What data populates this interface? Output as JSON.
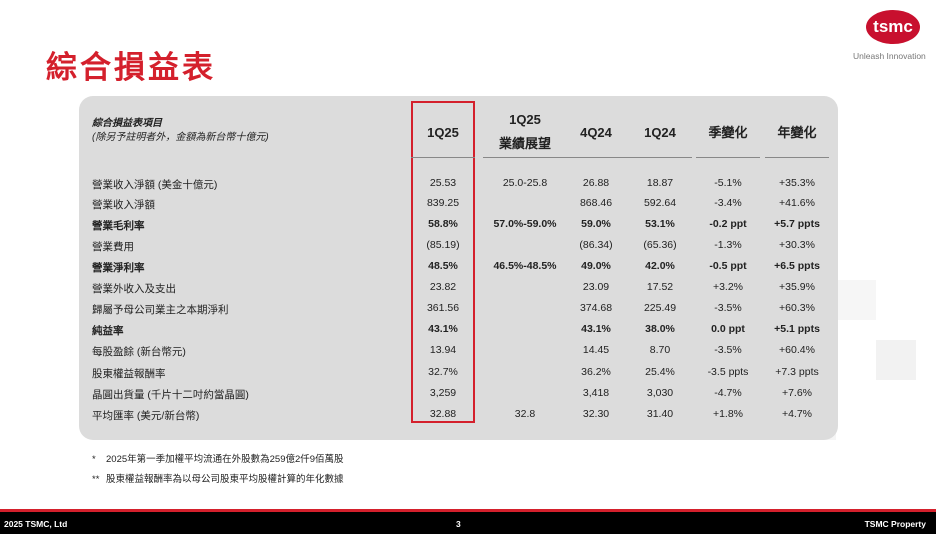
{
  "title": "綜合損益表",
  "logo": {
    "text": "tsmc",
    "tagline": "Unleash Innovation"
  },
  "header": {
    "item_title": "綜合損益表項目",
    "item_sub": "(除另予註明者外，金額為新台幣十億元)",
    "cols": [
      "1Q25",
      "1Q25\n業績展望",
      "4Q24",
      "1Q24",
      "季變化",
      "年變化"
    ]
  },
  "rows": [
    {
      "label": "營業收入淨額 (美金十億元)",
      "bold": false,
      "vals": [
        "25.53",
        "25.0-25.8",
        "26.88",
        "18.87",
        "-5.1%",
        "+35.3%"
      ]
    },
    {
      "label": "營業收入淨額",
      "bold": false,
      "vals": [
        "839.25",
        "",
        "868.46",
        "592.64",
        "-3.4%",
        "+41.6%"
      ]
    },
    {
      "label": "營業毛利率",
      "bold": true,
      "vals": [
        "58.8%",
        "57.0%-59.0%",
        "59.0%",
        "53.1%",
        "-0.2 ppt",
        "+5.7 ppts"
      ]
    },
    {
      "label": "營業費用",
      "bold": false,
      "vals": [
        "(85.19)",
        "",
        "(86.34)",
        "(65.36)",
        "-1.3%",
        "+30.3%"
      ]
    },
    {
      "label": "營業淨利率",
      "bold": true,
      "vals": [
        "48.5%",
        "46.5%-48.5%",
        "49.0%",
        "42.0%",
        "-0.5 ppt",
        "+6.5 ppts"
      ]
    },
    {
      "label": "營業外收入及支出",
      "bold": false,
      "vals": [
        "23.82",
        "",
        "23.09",
        "17.52",
        "+3.2%",
        "+35.9%"
      ]
    },
    {
      "label": "歸屬予母公司業主之本期淨利",
      "bold": false,
      "vals": [
        "361.56",
        "",
        "374.68",
        "225.49",
        "-3.5%",
        "+60.3%"
      ]
    },
    {
      "label": "純益率",
      "bold": true,
      "vals": [
        "43.1%",
        "",
        "43.1%",
        "38.0%",
        "0.0 ppt",
        "+5.1 ppts"
      ]
    },
    {
      "label": "每股盈餘 (新台幣元)",
      "bold": false,
      "vals": [
        "13.94",
        "",
        "14.45",
        "8.70",
        "-3.5%",
        "+60.4%"
      ]
    },
    {
      "label": "股東權益報酬率",
      "bold": false,
      "vals": [
        "32.7%",
        "",
        "36.2%",
        "25.4%",
        "-3.5 ppts",
        "+7.3 ppts"
      ]
    },
    {
      "label": "晶圓出貨量 (千片十二吋約當晶圓)",
      "bold": false,
      "vals": [
        "3,259",
        "",
        "3,418",
        "3,030",
        "-4.7%",
        "+7.6%"
      ]
    },
    {
      "label": "平均匯率 (美元/新台幣)",
      "bold": false,
      "vals": [
        "32.88",
        "32.8",
        "32.30",
        "31.40",
        "+1.8%",
        "+4.7%"
      ]
    }
  ],
  "notes": [
    {
      "mark": "*",
      "text": "2025年第一季加權平均流通在外股數為259億2仟9佰萬股"
    },
    {
      "mark": "**",
      "text": "股東權益報酬率為以母公司股東平均股權計算的年化數據"
    }
  ],
  "footer": {
    "left": "2025 TSMC, Ltd",
    "center": "3",
    "right": "TSMC Property"
  }
}
